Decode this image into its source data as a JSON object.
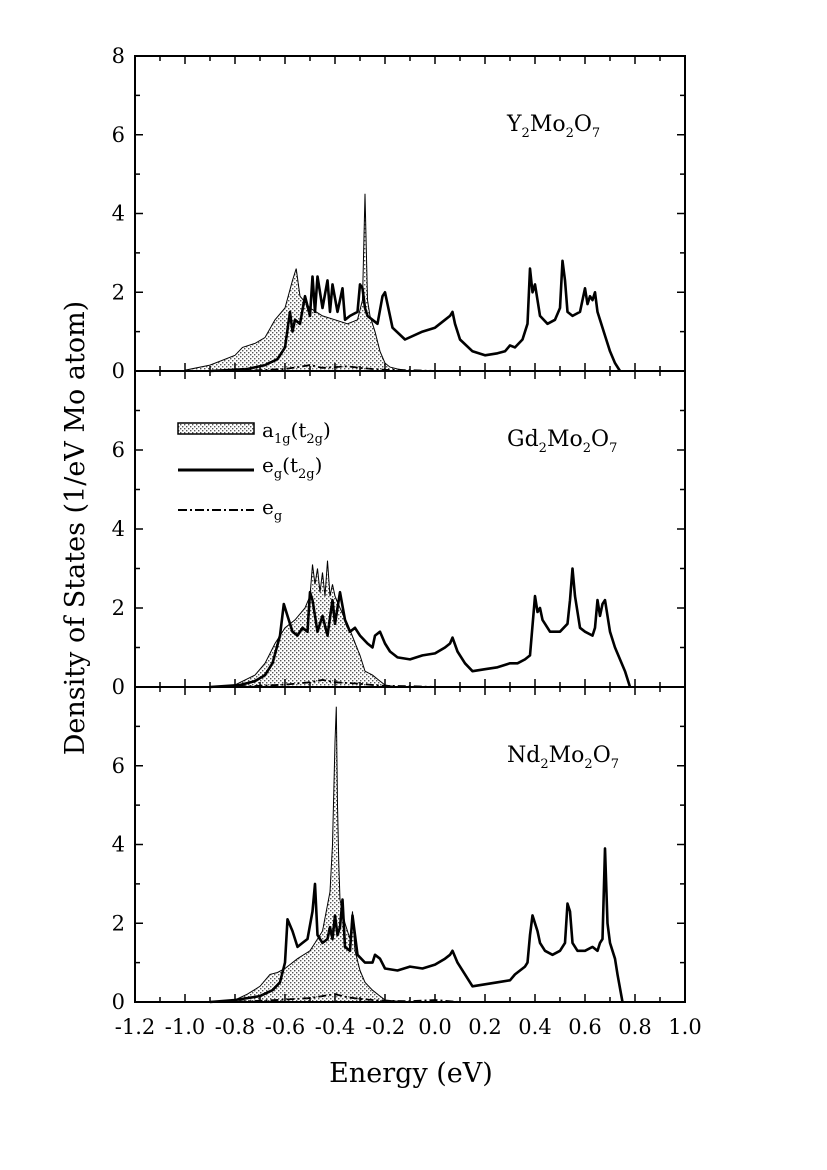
{
  "chart_data": {
    "type": "line",
    "title": "",
    "xlabel": "Energy (eV)",
    "ylabel": "Density of States (1/eV Mo atom)",
    "xlim": [
      -1.2,
      1.0
    ],
    "ylim": [
      0,
      8
    ],
    "x_ticks": [
      "-1.2",
      "-1.0",
      "-0.8",
      "-0.6",
      "-0.4",
      "-0.2",
      "0.0",
      "0.2",
      "0.4",
      "0.6",
      "0.8",
      "1.0"
    ],
    "y_ticks_top": [
      "0",
      "2",
      "4",
      "6",
      "8"
    ],
    "y_ticks": [
      "0",
      "2",
      "4",
      "6"
    ],
    "legend": {
      "placement": "upper-left of middle panel",
      "entries": [
        {
          "key": "a1g",
          "label": "a",
          "sub": "1g",
          "paren_open": "(t",
          "paren_sub": "2g",
          "paren_close": ")",
          "style": "shaded area"
        },
        {
          "key": "eg_t2g",
          "label": "e",
          "sub": "g",
          "paren_open": "(t",
          "paren_sub": "2g",
          "paren_close": ")",
          "style": "solid line"
        },
        {
          "key": "eg",
          "label": "e",
          "sub": "g",
          "style": "dash-dot line"
        }
      ]
    },
    "panels": [
      {
        "label_parts": [
          "Y",
          "2",
          "Mo",
          "2",
          "O",
          "7"
        ],
        "series": [
          {
            "name": "a1g(t2g)",
            "x": [
              -1.0,
              -0.9,
              -0.8,
              -0.77,
              -0.72,
              -0.68,
              -0.64,
              -0.6,
              -0.57,
              -0.555,
              -0.54,
              -0.5,
              -0.45,
              -0.4,
              -0.35,
              -0.31,
              -0.29,
              -0.28,
              -0.27,
              -0.26,
              -0.24,
              -0.22,
              -0.2,
              -0.18,
              -0.15,
              -0.1
            ],
            "y": [
              0.02,
              0.15,
              0.4,
              0.6,
              0.7,
              0.85,
              1.3,
              1.6,
              2.3,
              2.6,
              1.9,
              1.6,
              1.4,
              1.3,
              1.2,
              1.3,
              1.8,
              4.5,
              1.8,
              1.4,
              1.0,
              0.5,
              0.2,
              0.1,
              0.05,
              0.0
            ]
          },
          {
            "name": "eg(t2g)",
            "x": [
              -0.9,
              -0.75,
              -0.68,
              -0.63,
              -0.6,
              -0.58,
              -0.57,
              -0.56,
              -0.54,
              -0.52,
              -0.5,
              -0.49,
              -0.48,
              -0.47,
              -0.45,
              -0.43,
              -0.42,
              -0.41,
              -0.39,
              -0.37,
              -0.36,
              -0.34,
              -0.31,
              -0.3,
              -0.29,
              -0.28,
              -0.27,
              -0.25,
              -0.23,
              -0.21,
              -0.2,
              -0.19,
              -0.17,
              -0.12,
              -0.05,
              0.0,
              0.04,
              0.06,
              0.07,
              0.08,
              0.1,
              0.15,
              0.2,
              0.25,
              0.28,
              0.3,
              0.32,
              0.35,
              0.37,
              0.38,
              0.39,
              0.4,
              0.41,
              0.42,
              0.45,
              0.48,
              0.5,
              0.51,
              0.52,
              0.53,
              0.55,
              0.58,
              0.6,
              0.61,
              0.62,
              0.63,
              0.64,
              0.65,
              0.66,
              0.68,
              0.7,
              0.72,
              0.74
            ],
            "y": [
              0.0,
              0.05,
              0.15,
              0.3,
              0.6,
              1.5,
              1.0,
              1.3,
              1.2,
              1.9,
              1.4,
              2.4,
              1.5,
              2.4,
              1.6,
              2.3,
              1.5,
              2.2,
              1.5,
              2.1,
              1.3,
              1.4,
              1.5,
              2.2,
              2.1,
              1.6,
              1.4,
              1.3,
              1.2,
              1.9,
              2.0,
              1.7,
              1.1,
              0.8,
              1.0,
              1.1,
              1.3,
              1.4,
              1.5,
              1.2,
              0.8,
              0.5,
              0.4,
              0.45,
              0.5,
              0.65,
              0.6,
              0.8,
              1.2,
              2.6,
              2.0,
              2.2,
              1.8,
              1.4,
              1.2,
              1.3,
              1.6,
              2.8,
              2.3,
              1.5,
              1.4,
              1.5,
              2.1,
              1.7,
              1.9,
              1.8,
              2.0,
              1.5,
              1.3,
              0.9,
              0.5,
              0.2,
              0.0
            ]
          },
          {
            "name": "eg",
            "x": [
              -0.85,
              -0.7,
              -0.6,
              -0.55,
              -0.5,
              -0.45,
              -0.4,
              -0.35,
              -0.3,
              -0.25,
              -0.2,
              -0.1,
              0.0,
              0.1
            ],
            "y": [
              0.0,
              0.02,
              0.05,
              0.1,
              0.15,
              0.08,
              0.1,
              0.12,
              0.08,
              0.05,
              0.03,
              0.02,
              0.0,
              0.0
            ]
          }
        ]
      },
      {
        "label_parts": [
          "Gd",
          "2",
          "Mo",
          "2",
          "O",
          "7"
        ],
        "series": [
          {
            "name": "a1g(t2g)",
            "x": [
              -0.9,
              -0.8,
              -0.72,
              -0.68,
              -0.64,
              -0.6,
              -0.56,
              -0.52,
              -0.5,
              -0.49,
              -0.48,
              -0.47,
              -0.46,
              -0.45,
              -0.44,
              -0.43,
              -0.42,
              -0.41,
              -0.4,
              -0.38,
              -0.35,
              -0.3,
              -0.28,
              -0.25,
              -0.22,
              -0.2,
              -0.15
            ],
            "y": [
              0.0,
              0.05,
              0.3,
              0.6,
              1.1,
              1.5,
              1.7,
              2.0,
              2.3,
              3.1,
              2.6,
              3.0,
              2.4,
              2.9,
              2.3,
              3.2,
              2.3,
              2.6,
              2.3,
              2.0,
              1.6,
              0.8,
              0.4,
              0.3,
              0.15,
              0.05,
              0.0
            ]
          },
          {
            "name": "eg(t2g)",
            "x": [
              -0.9,
              -0.78,
              -0.72,
              -0.68,
              -0.65,
              -0.62,
              -0.605,
              -0.59,
              -0.57,
              -0.55,
              -0.53,
              -0.51,
              -0.5,
              -0.49,
              -0.47,
              -0.45,
              -0.43,
              -0.41,
              -0.4,
              -0.38,
              -0.36,
              -0.34,
              -0.32,
              -0.3,
              -0.27,
              -0.25,
              -0.24,
              -0.22,
              -0.2,
              -0.18,
              -0.15,
              -0.1,
              -0.05,
              0.0,
              0.04,
              0.06,
              0.07,
              0.09,
              0.12,
              0.15,
              0.2,
              0.25,
              0.3,
              0.33,
              0.36,
              0.38,
              0.4,
              0.41,
              0.42,
              0.43,
              0.44,
              0.46,
              0.5,
              0.53,
              0.54,
              0.55,
              0.56,
              0.58,
              0.6,
              0.63,
              0.64,
              0.65,
              0.66,
              0.67,
              0.68,
              0.7,
              0.72,
              0.74,
              0.76,
              0.78
            ],
            "y": [
              0.0,
              0.05,
              0.15,
              0.3,
              0.6,
              1.3,
              2.1,
              1.8,
              1.4,
              1.3,
              1.5,
              1.4,
              2.4,
              2.2,
              1.4,
              1.8,
              1.3,
              2.2,
              1.6,
              2.4,
              1.7,
              1.4,
              1.5,
              1.3,
              1.1,
              1.0,
              1.3,
              1.4,
              1.1,
              0.9,
              0.75,
              0.7,
              0.8,
              0.85,
              1.0,
              1.1,
              1.25,
              0.9,
              0.6,
              0.4,
              0.45,
              0.5,
              0.6,
              0.6,
              0.7,
              0.8,
              2.3,
              1.9,
              2.0,
              1.7,
              1.6,
              1.4,
              1.4,
              1.6,
              2.2,
              3.0,
              2.3,
              1.5,
              1.4,
              1.3,
              1.5,
              2.2,
              1.8,
              2.1,
              2.2,
              1.4,
              1.0,
              0.7,
              0.4,
              0.0
            ]
          },
          {
            "name": "eg",
            "x": [
              -0.85,
              -0.7,
              -0.6,
              -0.5,
              -0.45,
              -0.4,
              -0.35,
              -0.3,
              -0.25,
              -0.2,
              -0.1,
              0.0,
              0.1
            ],
            "y": [
              0.0,
              0.03,
              0.06,
              0.12,
              0.18,
              0.12,
              0.1,
              0.08,
              0.05,
              0.03,
              0.02,
              0.0,
              0.0
            ]
          }
        ]
      },
      {
        "label_parts": [
          "Nd",
          "2",
          "Mo",
          "2",
          "O",
          "7"
        ],
        "series": [
          {
            "name": "a1g(t2g)",
            "x": [
              -0.85,
              -0.8,
              -0.75,
              -0.7,
              -0.66,
              -0.63,
              -0.6,
              -0.55,
              -0.5,
              -0.45,
              -0.42,
              -0.41,
              -0.4,
              -0.395,
              -0.39,
              -0.385,
              -0.38,
              -0.36,
              -0.34,
              -0.33,
              -0.32,
              -0.3,
              -0.28,
              -0.25,
              -0.22,
              -0.2,
              -0.15,
              -0.1
            ],
            "y": [
              0.0,
              0.05,
              0.2,
              0.4,
              0.7,
              0.75,
              0.85,
              1.1,
              1.3,
              1.8,
              2.8,
              4.0,
              6.6,
              7.5,
              5.0,
              3.5,
              2.6,
              2.0,
              1.6,
              2.3,
              1.3,
              0.8,
              0.5,
              0.3,
              0.15,
              0.05,
              0.02,
              0.0
            ]
          },
          {
            "name": "eg(t2g)",
            "x": [
              -0.9,
              -0.8,
              -0.7,
              -0.65,
              -0.62,
              -0.6,
              -0.59,
              -0.57,
              -0.55,
              -0.53,
              -0.51,
              -0.49,
              -0.48,
              -0.47,
              -0.45,
              -0.43,
              -0.42,
              -0.41,
              -0.4,
              -0.39,
              -0.38,
              -0.37,
              -0.36,
              -0.34,
              -0.33,
              -0.31,
              -0.28,
              -0.25,
              -0.24,
              -0.22,
              -0.2,
              -0.15,
              -0.1,
              -0.05,
              0.0,
              0.04,
              0.06,
              0.07,
              0.09,
              0.12,
              0.15,
              0.2,
              0.25,
              0.3,
              0.32,
              0.34,
              0.36,
              0.37,
              0.38,
              0.39,
              0.4,
              0.41,
              0.42,
              0.44,
              0.47,
              0.5,
              0.52,
              0.53,
              0.54,
              0.55,
              0.57,
              0.6,
              0.63,
              0.65,
              0.66,
              0.67,
              0.68,
              0.69,
              0.7,
              0.71,
              0.72,
              0.73,
              0.75
            ],
            "y": [
              0.0,
              0.05,
              0.15,
              0.3,
              0.5,
              1.0,
              2.1,
              1.8,
              1.4,
              1.5,
              1.6,
              2.3,
              3.0,
              1.7,
              1.5,
              1.6,
              1.9,
              1.6,
              2.2,
              1.7,
              1.9,
              2.6,
              1.4,
              1.3,
              2.2,
              1.2,
              1.0,
              1.0,
              1.2,
              1.1,
              0.85,
              0.8,
              0.9,
              0.85,
              0.95,
              1.1,
              1.2,
              1.3,
              1.0,
              0.7,
              0.4,
              0.45,
              0.5,
              0.55,
              0.7,
              0.8,
              0.9,
              1.0,
              1.7,
              2.2,
              2.0,
              1.8,
              1.5,
              1.3,
              1.2,
              1.3,
              1.5,
              2.5,
              2.3,
              1.5,
              1.3,
              1.3,
              1.4,
              1.3,
              1.5,
              1.6,
              3.9,
              2.0,
              1.5,
              1.3,
              1.1,
              0.7,
              0.0
            ]
          },
          {
            "name": "eg",
            "x": [
              -0.85,
              -0.7,
              -0.6,
              -0.5,
              -0.45,
              -0.4,
              -0.35,
              -0.3,
              -0.25,
              -0.2,
              -0.1,
              0.0,
              0.1
            ],
            "y": [
              0.0,
              0.03,
              0.06,
              0.1,
              0.15,
              0.2,
              0.12,
              0.08,
              0.05,
              0.03,
              0.02,
              0.05,
              0.0
            ]
          }
        ]
      }
    ]
  }
}
